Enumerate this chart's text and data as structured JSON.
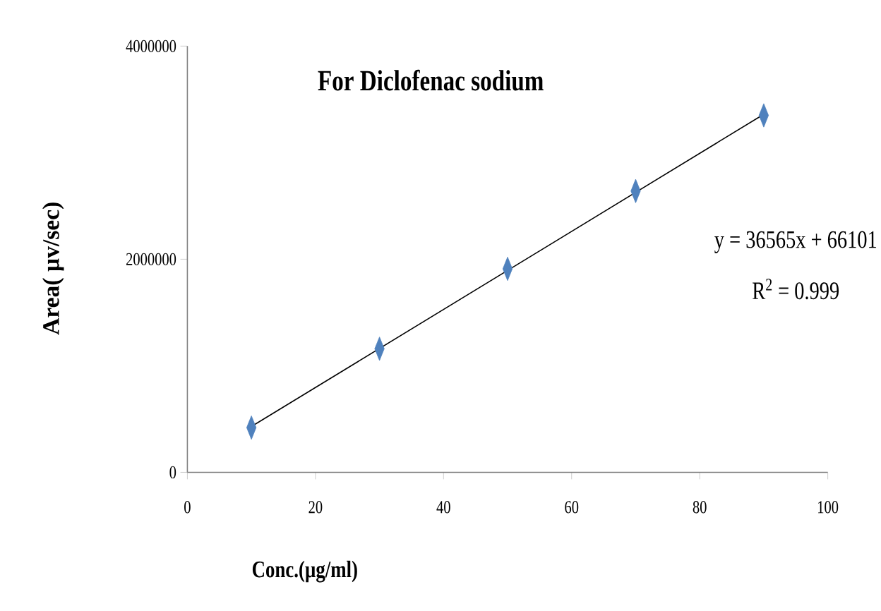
{
  "chart_data": {
    "type": "scatter",
    "title": "For Diclofenac sodium",
    "xlabel": "Conc.(µg/ml)",
    "ylabel": "Area( µv/sec)",
    "x": [
      10,
      30,
      50,
      70,
      90
    ],
    "series": [
      {
        "color": "#4f81bd",
        "values": [
          420000,
          1160000,
          1910000,
          2640000,
          3350000
        ]
      },
      {
        "type": "line",
        "marker": "none",
        "color": "#000000",
        "x": [
          10,
          90
        ],
        "values": [
          430000,
          3360000
        ]
      }
    ],
    "marker": "diamond",
    "xlim": [
      0,
      100
    ],
    "xticks": [
      0,
      20,
      40,
      60,
      80,
      100
    ],
    "ylim": [
      0,
      4000000
    ],
    "yticks": [
      0,
      2000000,
      4000000
    ],
    "annotations": [
      "y = 36565x + 66101",
      "R$^{2}$ = 0.999"
    ]
  }
}
